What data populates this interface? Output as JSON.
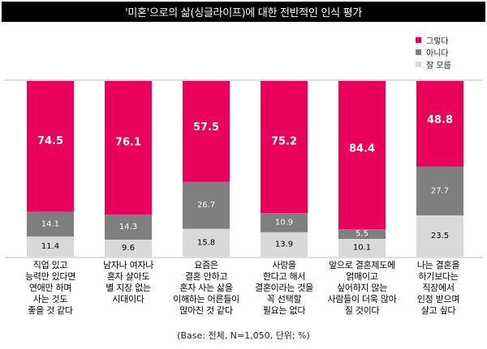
{
  "title": "'미혼'으로의 삶(싱글라이프)에 대한 전반적인 인식 평가",
  "footnote": "(Base: 전체, N=1,050, 단위; %)",
  "colors": {
    "yes": "#e8005a",
    "no": "#7f7f7f",
    "unsure": "#d9d9d9",
    "divider": "#bfbfbf",
    "title_bg": "#000000"
  },
  "chart_data": {
    "type": "bar",
    "stacked": true,
    "orientation": "vertical",
    "ylim": [
      0,
      100
    ],
    "grid": false,
    "legend_position": "top-right",
    "categories": [
      "직업 있고\n능력만 있다면\n연애만 하며\n사는 것도\n좋을 것 같다",
      "남자나 여자나\n혼자 살아도\n별 지장 없는\n시대이다",
      "요즘은\n결혼 안하고\n혼자 사는 삶을\n이해하는 어른들이\n많아진 것 같다",
      "사랑을\n한다고 해서\n결혼이라는 것을\n꼭 선택할\n필요는 없다",
      "앞으로 결혼제도에\n얽매이고\n싶어하지 않는\n사람들이 더욱 많아\n질 것이다",
      "나는 결혼을\n하기보다는\n직장에서\n인정 받으며\n살고 싶다"
    ],
    "series": [
      {
        "name": "그렇다",
        "color": "#e8005a",
        "values": [
          74.5,
          76.1,
          57.5,
          75.2,
          84.4,
          48.8
        ]
      },
      {
        "name": "아니다",
        "color": "#7f7f7f",
        "values": [
          14.1,
          14.3,
          26.7,
          10.9,
          5.5,
          27.7
        ]
      },
      {
        "name": "잘 모름",
        "color": "#d9d9d9",
        "values": [
          11.4,
          9.6,
          15.8,
          13.9,
          10.1,
          23.5
        ]
      }
    ],
    "value_labels": [
      [
        "74.5",
        "76.1",
        "57.5",
        "75.2",
        "84.4",
        "48.8"
      ],
      [
        "14.1",
        "14.3",
        "26.7",
        "10.9",
        "5.5",
        "27.7"
      ],
      [
        "11.4",
        "9.6",
        "15.8",
        "13.9",
        "10.1",
        "23.5"
      ]
    ]
  }
}
